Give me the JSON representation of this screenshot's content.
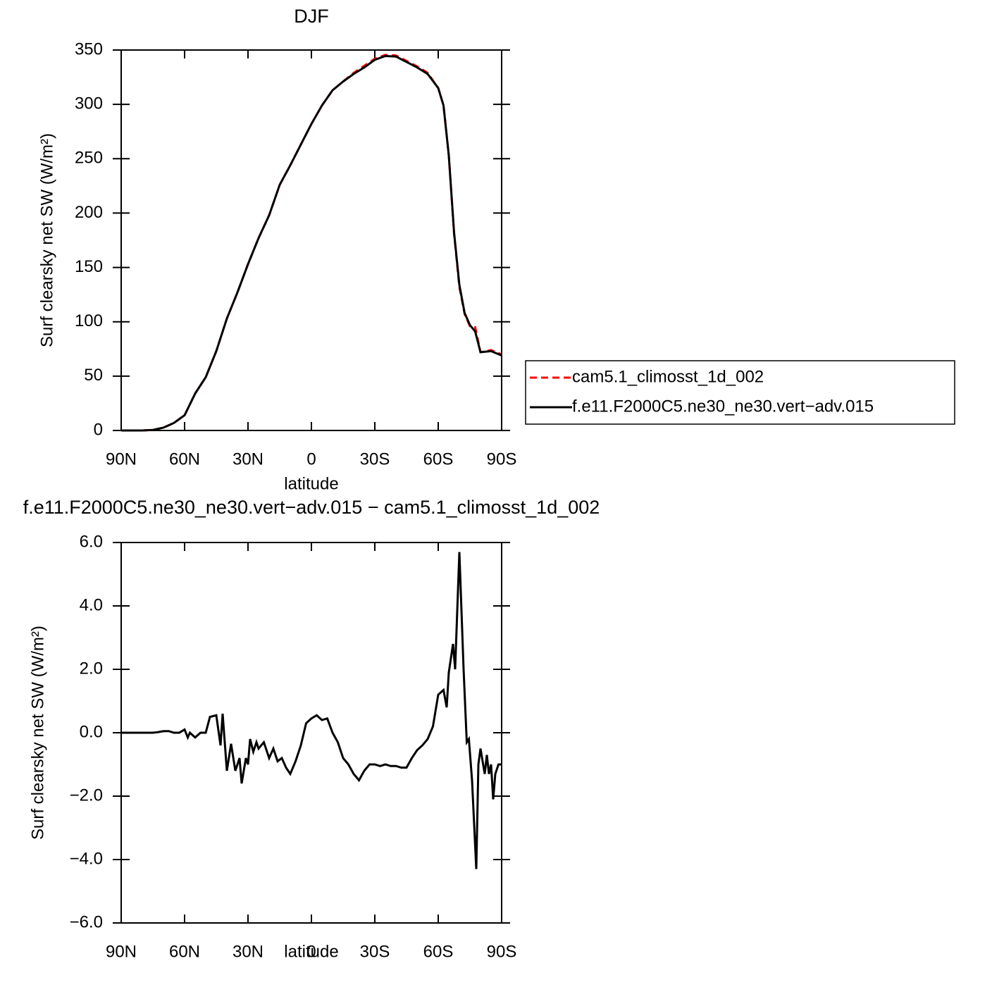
{
  "chart_data": [
    {
      "type": "line",
      "title": "DJF",
      "xlabel": "latitude",
      "ylabel": "Surf clearsky net SW (W/m²)",
      "x": [
        90,
        85,
        80,
        75,
        70,
        65,
        60,
        55,
        50,
        45,
        40,
        35,
        30,
        25,
        20,
        15,
        10,
        5,
        0,
        -5,
        -10,
        -15,
        -20,
        -25,
        -30,
        -35,
        -40,
        -45,
        -50,
        -55,
        -60,
        -62.5,
        -65,
        -67.5,
        -70,
        -72.5,
        -75,
        -77.5,
        -80,
        -85,
        -90
      ],
      "series": [
        {
          "name": "cam5.1_climosst_1d_002",
          "color": "#ff0000",
          "dash": true,
          "values": [
            0,
            0,
            0,
            0.5,
            2.6,
            7,
            14,
            34,
            49,
            73,
            103,
            127,
            153,
            177,
            198,
            226,
            244,
            263,
            282,
            299,
            313,
            321,
            329,
            335.5,
            342,
            345.5,
            345,
            340,
            335,
            329,
            315,
            299,
            253,
            181,
            132,
            107,
            96,
            95,
            72,
            74,
            70
          ]
        },
        {
          "name": "f.e11.F2000C5.ne30_ne30.vert−adv.015",
          "color": "#000000",
          "dash": false,
          "values": [
            0,
            0,
            0,
            0.5,
            2.6,
            7,
            14,
            34,
            49,
            73,
            103,
            127,
            153,
            177,
            198,
            226,
            244,
            263,
            282,
            299,
            313,
            321,
            328,
            334,
            341,
            344.5,
            344,
            339,
            334,
            328,
            315,
            299,
            253,
            182,
            134,
            108,
            97,
            91,
            72,
            73,
            69
          ]
        }
      ],
      "xlim": [
        90,
        -90
      ],
      "xticks": [
        {
          "value": 90,
          "label": "90N"
        },
        {
          "value": 60,
          "label": "60N"
        },
        {
          "value": 30,
          "label": "30N"
        },
        0,
        {
          "value": -30,
          "label": "30S"
        },
        {
          "value": -60,
          "label": "60S"
        },
        {
          "value": -90,
          "label": "90S"
        }
      ],
      "ylim": [
        0,
        350
      ],
      "yticks": [
        0,
        50,
        100,
        150,
        200,
        250,
        300,
        350
      ],
      "legend": "right"
    },
    {
      "type": "line",
      "title": "f.e11.F2000C5.ne30_ne30.vert−adv.015 − cam5.1_climosst_1d_002",
      "xlabel": "latitude",
      "ylabel": "Surf clearsky net SW (W/m²)",
      "x": [
        90,
        87.5,
        85,
        82.5,
        80,
        77.5,
        75,
        72.5,
        70,
        67.5,
        65,
        62.5,
        60,
        58.5,
        57.5,
        55,
        52.5,
        50,
        48,
        45,
        43,
        42,
        40,
        38,
        36,
        34,
        33,
        31,
        30,
        29,
        27.5,
        26,
        25,
        22.5,
        20,
        18,
        16,
        14,
        12,
        10,
        7.5,
        5,
        2.5,
        0,
        -2.5,
        -5,
        -7.5,
        -10,
        -12.5,
        -15,
        -17.5,
        -20,
        -22.5,
        -25,
        -27.5,
        -30,
        -32.5,
        -35,
        -37.5,
        -40,
        -42.5,
        -45,
        -47.5,
        -50,
        -52.5,
        -55,
        -57.5,
        -60,
        -62.5,
        -64,
        -65,
        -67,
        -68,
        -70,
        -72,
        -73.5,
        -74.5,
        -76,
        -78,
        -79,
        -80,
        -82,
        -83,
        -84,
        -85,
        -86,
        -87,
        -88.5,
        -90
      ],
      "series": [
        {
          "name": "f.e11.F2000C5.ne30_ne30.vert−adv.015 − cam5.1_climosst_1d_002",
          "color": "#000000",
          "values": [
            0,
            0,
            0,
            0,
            0,
            0,
            0,
            0.02,
            0.05,
            0.05,
            0,
            0,
            0.1,
            -0.15,
            0,
            -0.15,
            0,
            0,
            0.5,
            0.55,
            -0.4,
            0.6,
            -1.2,
            -0.35,
            -1.2,
            -0.8,
            -1.6,
            -0.8,
            -1.0,
            -0.2,
            -0.6,
            -0.3,
            -0.5,
            -0.3,
            -0.8,
            -0.5,
            -0.9,
            -0.8,
            -1.1,
            -1.3,
            -0.9,
            -0.4,
            0.3,
            0.45,
            0.55,
            0.4,
            0.45,
            0,
            -0.3,
            -0.8,
            -1.0,
            -1.3,
            -1.5,
            -1.2,
            -1.0,
            -1.0,
            -1.05,
            -1.0,
            -1.05,
            -1.05,
            -1.1,
            -1.1,
            -0.8,
            -0.55,
            -0.4,
            -0.2,
            0.2,
            1.2,
            1.35,
            0.8,
            1.9,
            2.8,
            2.0,
            5.7,
            2.0,
            -0.3,
            -0.2,
            -1.5,
            -4.3,
            -1.0,
            -0.5,
            -1.3,
            -0.7,
            -1.3,
            -1.0,
            -2.1,
            -1.3,
            -1.0,
            -1.0
          ]
        }
      ],
      "xlim": [
        90,
        -90
      ],
      "xticks": [
        {
          "value": 90,
          "label": "90N"
        },
        {
          "value": 60,
          "label": "60N"
        },
        {
          "value": 30,
          "label": "30N"
        },
        0,
        {
          "value": -30,
          "label": "30S"
        },
        {
          "value": -60,
          "label": "60S"
        },
        {
          "value": -90,
          "label": "90S"
        }
      ],
      "ylim": [
        -6,
        6
      ],
      "yticks": [
        {
          "value": -6,
          "label": "−6.0"
        },
        {
          "value": -4,
          "label": "−4.0"
        },
        {
          "value": -2,
          "label": "−2.0"
        },
        {
          "value": 0,
          "label": "0.0"
        },
        {
          "value": 2,
          "label": "2.0"
        },
        {
          "value": 4,
          "label": "4.0"
        },
        {
          "value": 6,
          "label": "6.0"
        }
      ]
    }
  ]
}
